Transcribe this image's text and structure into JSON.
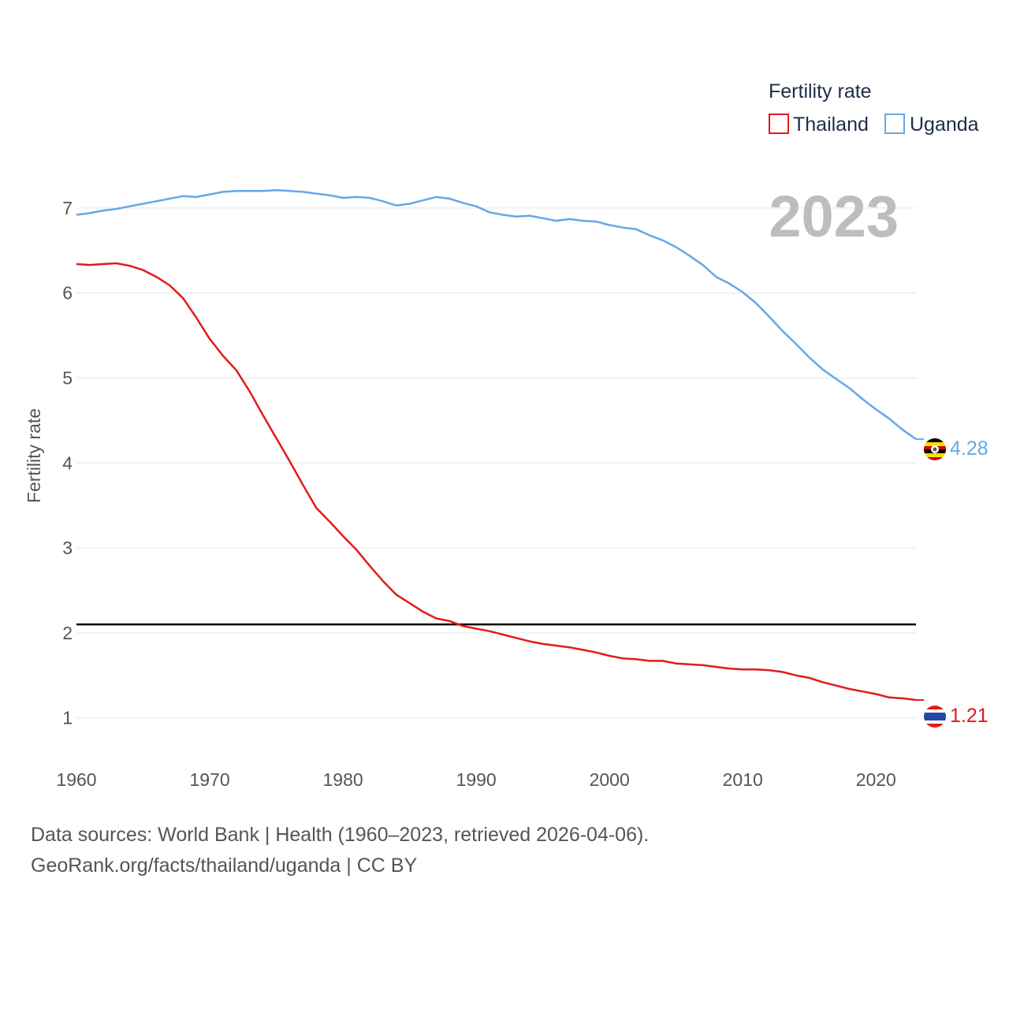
{
  "chart_data": {
    "type": "line",
    "year_label": "2023",
    "ylabel": "Fertility rate",
    "xlabel": "",
    "legend_title": "Fertility rate",
    "legend_position": "top-right",
    "xlim": [
      1960,
      2023
    ],
    "ylim": [
      0.7,
      7.5
    ],
    "x_ticks": [
      1960,
      1970,
      1980,
      1990,
      2000,
      2010,
      2020
    ],
    "y_ticks": [
      1,
      2,
      3,
      4,
      5,
      6,
      7
    ],
    "grid": true,
    "reference_line": {
      "value": 2.1,
      "color": "#000000"
    },
    "x": [
      1960,
      1961,
      1962,
      1963,
      1964,
      1965,
      1966,
      1967,
      1968,
      1969,
      1970,
      1971,
      1972,
      1973,
      1974,
      1975,
      1976,
      1977,
      1978,
      1979,
      1980,
      1981,
      1982,
      1983,
      1984,
      1985,
      1986,
      1987,
      1988,
      1989,
      1990,
      1991,
      1992,
      1993,
      1994,
      1995,
      1996,
      1997,
      1998,
      1999,
      2000,
      2001,
      2002,
      2003,
      2004,
      2005,
      2006,
      2007,
      2008,
      2009,
      2010,
      2011,
      2012,
      2013,
      2014,
      2015,
      2016,
      2017,
      2018,
      2019,
      2020,
      2021,
      2022,
      2023
    ],
    "series": [
      {
        "name": "Thailand",
        "color": "#e31a1c",
        "flag": "thailand-flag",
        "end_label": "1.21",
        "values": [
          6.34,
          6.33,
          6.34,
          6.35,
          6.32,
          6.27,
          6.19,
          6.09,
          5.94,
          5.71,
          5.46,
          5.26,
          5.09,
          4.84,
          4.56,
          4.29,
          4.02,
          3.74,
          3.47,
          3.31,
          3.14,
          2.98,
          2.79,
          2.61,
          2.45,
          2.35,
          2.25,
          2.17,
          2.14,
          2.08,
          2.05,
          2.02,
          1.98,
          1.94,
          1.9,
          1.87,
          1.85,
          1.83,
          1.8,
          1.77,
          1.73,
          1.7,
          1.69,
          1.67,
          1.67,
          1.64,
          1.63,
          1.62,
          1.6,
          1.58,
          1.57,
          1.57,
          1.56,
          1.54,
          1.5,
          1.47,
          1.42,
          1.38,
          1.34,
          1.31,
          1.28,
          1.24,
          1.23,
          1.21
        ]
      },
      {
        "name": "Uganda",
        "color": "#64a8e8",
        "flag": "uganda-flag",
        "end_label": "4.28",
        "values": [
          6.92,
          6.94,
          6.97,
          6.99,
          7.02,
          7.05,
          7.08,
          7.11,
          7.14,
          7.13,
          7.16,
          7.19,
          7.2,
          7.2,
          7.2,
          7.21,
          7.2,
          7.19,
          7.17,
          7.15,
          7.12,
          7.13,
          7.12,
          7.08,
          7.03,
          7.05,
          7.09,
          7.13,
          7.11,
          7.06,
          7.02,
          6.95,
          6.92,
          6.9,
          6.91,
          6.88,
          6.85,
          6.87,
          6.85,
          6.84,
          6.8,
          6.77,
          6.75,
          6.68,
          6.62,
          6.54,
          6.44,
          6.33,
          6.19,
          6.11,
          6.01,
          5.88,
          5.72,
          5.55,
          5.4,
          5.24,
          5.1,
          4.99,
          4.88,
          4.75,
          4.63,
          4.52,
          4.39,
          4.28
        ]
      }
    ]
  },
  "footer": {
    "line1": "Data sources: World Bank | Health (1960–2023, retrieved 2026-04-06).",
    "line2": "GeoRank.org/facts/thailand/uganda | CC BY"
  }
}
